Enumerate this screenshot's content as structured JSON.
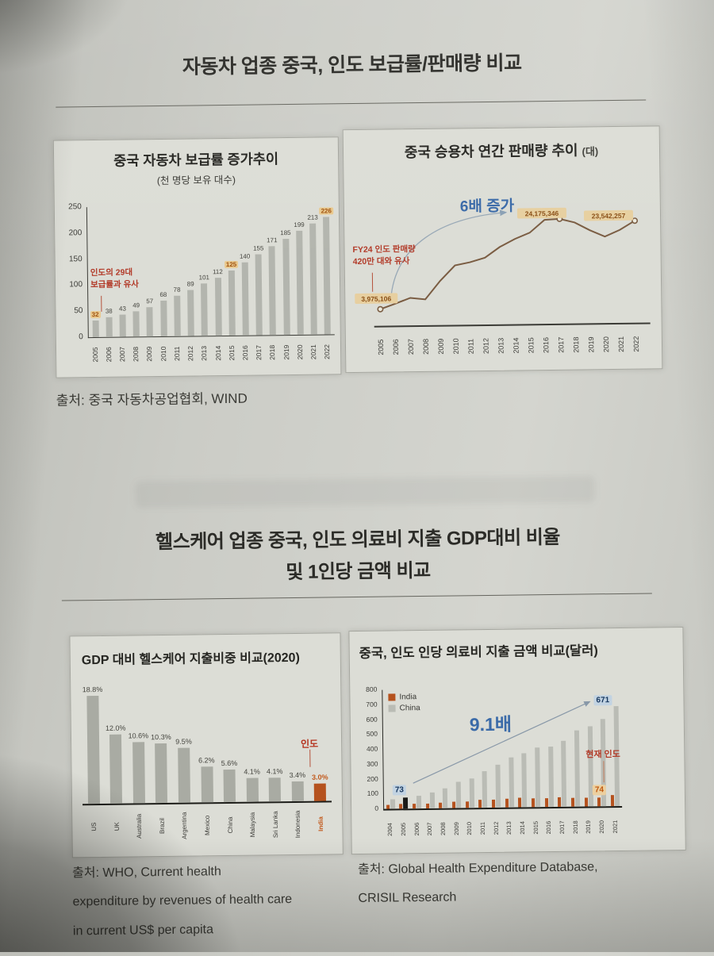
{
  "sections": {
    "autos": {
      "title": "자동차 업종 중국, 인도 보급률/판매량 비교",
      "source": "출처: 중국 자동차공업협회, WIND"
    },
    "healthcare": {
      "title_line1": "헬스케어 업종 중국, 인도 의료비 지출 GDP대비 비율",
      "title_line2": "및 1인당 금액 비교",
      "source_left_line1": "출처: WHO, Current health",
      "source_left_line2": "expenditure by revenues of health care",
      "source_left_line3": "in current US$ per capita",
      "source_right_line1": "출처: Global Health Expenditure Database,",
      "source_right_line2": "CRISIL Research"
    }
  },
  "chart_data": [
    {
      "id": "china-auto-penetration",
      "type": "bar",
      "title": "중국 자동차 보급률 증가추이",
      "subtitle": "(천 명당 보유 대수)",
      "categories": [
        "2005",
        "2006",
        "2007",
        "2008",
        "2009",
        "2010",
        "2011",
        "2012",
        "2013",
        "2014",
        "2015",
        "2016",
        "2017",
        "2018",
        "2019",
        "2020",
        "2021",
        "2022"
      ],
      "values": [
        32,
        38,
        43,
        49,
        57,
        68,
        78,
        89,
        101,
        112,
        125,
        140,
        155,
        171,
        185,
        199,
        213,
        226
      ],
      "highlighted_indices": [
        0,
        10,
        17
      ],
      "annotation_red_line1": "인도의 29대",
      "annotation_red_line2": "보급률과 유사",
      "ylim": [
        0,
        250
      ],
      "yticks": [
        0,
        50,
        100,
        150,
        200,
        250
      ],
      "grid": false
    },
    {
      "id": "china-passenger-car-annual-sales",
      "type": "line",
      "title": "중국 승용차 연간 판매량 추이",
      "unit_suffix": "(대)",
      "x": [
        "2005",
        "2006",
        "2007",
        "2008",
        "2009",
        "2010",
        "2011",
        "2012",
        "2013",
        "2014",
        "2015",
        "2016",
        "2017",
        "2018",
        "2019",
        "2020",
        "2021",
        "2022"
      ],
      "values": [
        3975106,
        5200000,
        6500000,
        6100000,
        10300000,
        13800000,
        14500000,
        15500000,
        17900000,
        19700000,
        21100000,
        24000000,
        24175346,
        23300000,
        21500000,
        20000000,
        21500000,
        23542257
      ],
      "marker_indices": [
        0,
        12,
        17
      ],
      "point_labels": {
        "p0": "3,975,106",
        "p12": "24,175,346",
        "p17": "23,542,257"
      },
      "annotation_blue": "6배 증가",
      "annotation_red_line1": "FY24 인도 판매량",
      "annotation_red_line2": "420만 대와 유사"
    },
    {
      "id": "gdp-healthcare-expenditure-share-2020",
      "type": "bar",
      "title": "GDP 대비 헬스케어 지출비중 비교(2020)",
      "categories": [
        "US",
        "UK",
        "Australia",
        "Brazil",
        "Argentina",
        "Mexico",
        "China",
        "Malaysia",
        "Sri Lanka",
        "Indonesia",
        "India"
      ],
      "values": [
        18.8,
        12.0,
        10.6,
        10.3,
        9.5,
        6.2,
        5.6,
        4.1,
        4.1,
        3.4,
        3.0
      ],
      "value_labels": [
        "18.8%",
        "12.0%",
        "10.6%",
        "10.3%",
        "9.5%",
        "6.2%",
        "5.6%",
        "4.1%",
        "4.1%",
        "3.4%",
        "3.0%"
      ],
      "highlight_category": "India",
      "annotation_red": "인도",
      "grid": false
    },
    {
      "id": "china-india-per-capita-health-expenditure",
      "type": "bar",
      "title": "중국, 인도 인당 의료비 지출 금액 비교(달러)",
      "categories": [
        "2004",
        "2005",
        "2006",
        "2007",
        "2008",
        "2009",
        "2010",
        "2011",
        "2012",
        "2013",
        "2014",
        "2015",
        "2016",
        "2017",
        "2018",
        "2019",
        "2020",
        "2021"
      ],
      "legend": [
        "India",
        "China"
      ],
      "series": [
        {
          "name": "India",
          "values": [
            25,
            30,
            31,
            34,
            38,
            42,
            45,
            52,
            55,
            58,
            62,
            60,
            60,
            62,
            58,
            57,
            59,
            74
          ]
        },
        {
          "name": "China",
          "values": [
            65,
            73,
            85,
            105,
            135,
            175,
            195,
            245,
            290,
            335,
            365,
            400,
            405,
            445,
            510,
            540,
            585,
            671
          ]
        }
      ],
      "china_highlight_year": "2005",
      "badges": {
        "start": "73",
        "end": "671",
        "india_end": "74"
      },
      "annotation_blue": "9.1배",
      "annotation_red": "현재 인도",
      "ylim": [
        0,
        800
      ],
      "yticks": [
        0,
        100,
        200,
        300,
        400,
        500,
        600,
        700,
        800
      ],
      "grid": false
    }
  ],
  "colors": {
    "paper": "#cdcec8",
    "card": "#dcddd6",
    "bar_gray": "#b3b5ae",
    "bar_india": "#b5521e",
    "bar_china": "#babcb5",
    "bar_black_highlight": "#1b1b18",
    "line_brown": "#7a5c42",
    "highlight_badge_bg": "#e9c98f",
    "highlight_badge_text": "#a05310",
    "annotation_red": "#b23a28",
    "annotation_blue": "#3a6aa8",
    "badge_blue_bg": "#c2d3e2",
    "badge_blue_text": "#17375e",
    "badge_orange_bg": "#ecd0a0",
    "badge_orange_text": "#c05a12",
    "axis": "#3b3b36"
  }
}
